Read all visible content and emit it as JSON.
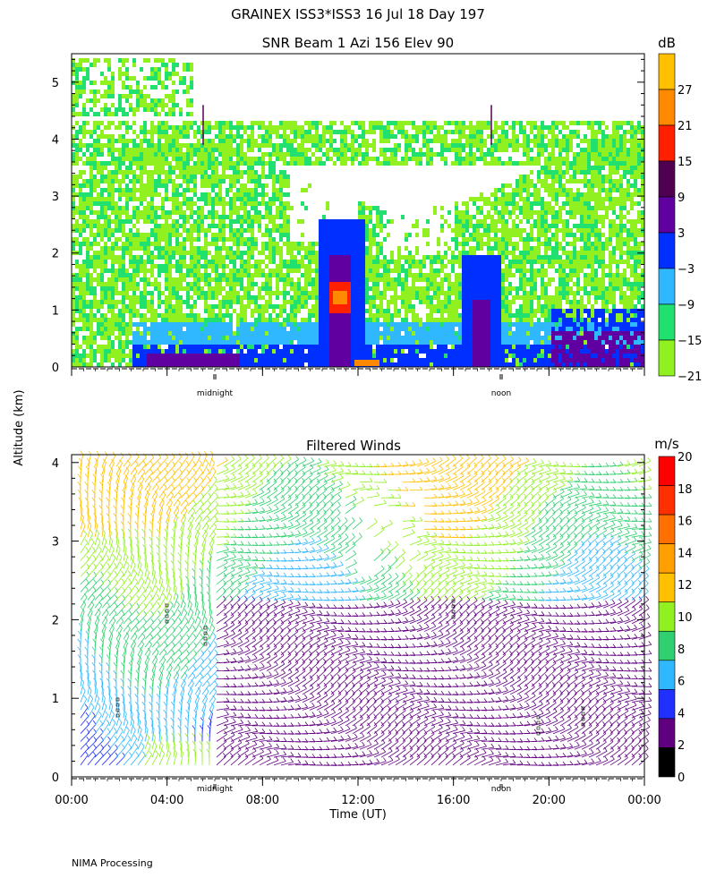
{
  "header": {
    "title": "GRAINEX ISS3*ISS3  16 Jul 18 Day 197"
  },
  "footer": {
    "processing": "NIMA Processing"
  },
  "chart_data": [
    {
      "type": "heatmap",
      "title": "SNR Beam 1 Azi 156 Elev 90",
      "ylabel": "Altitude (km)",
      "xlabel": "",
      "ylim": [
        0,
        5.5
      ],
      "y_ticks": [
        "0",
        "1",
        "2",
        "3",
        "4",
        "5"
      ],
      "x_markers": [
        "midnight",
        "noon"
      ],
      "colorbar": {
        "unit": "dB",
        "tick_labels": [
          "27",
          "21",
          "15",
          "9",
          "3",
          "−3",
          "−9",
          "−15",
          "−21"
        ],
        "colors": [
          "#ffc000",
          "#ff8a00",
          "#ff2000",
          "#500050",
          "#6000a0",
          "#0030ff",
          "#30b8ff",
          "#20e070",
          "#90f020"
        ]
      },
      "features": [
        {
          "name": "background band",
          "altitude_km": [
            0.2,
            3.5
          ],
          "snr_db": -15
        },
        {
          "name": "upper layer",
          "altitude_km": [
            3.8,
            4.3
          ],
          "snr_db": -18
        },
        {
          "name": "boundary layer",
          "altitude_km": [
            0.1,
            0.8
          ],
          "snr_db": -3
        },
        {
          "name": "convective plume ~11:00",
          "altitude_km": [
            0.1,
            2.6
          ],
          "snr_db": 9
        },
        {
          "name": "afternoon plume ~17:00",
          "altitude_km": [
            0.1,
            2.0
          ],
          "snr_db": 3
        }
      ]
    },
    {
      "type": "scatter",
      "title": "Filtered Winds",
      "xlabel": "Time (UT)",
      "ylabel": "Altitude (km)",
      "ylim": [
        0,
        4
      ],
      "x_ticks": [
        "00:00",
        "04:00",
        "08:00",
        "12:00",
        "16:00",
        "20:00",
        "00:00"
      ],
      "y_ticks": [
        "0",
        "1",
        "2",
        "3",
        "4"
      ],
      "x_markers": [
        "midnight",
        "noon"
      ],
      "colorbar": {
        "unit": "m/s",
        "tick_labels": [
          "20",
          "18",
          "16",
          "14",
          "12",
          "10",
          "8",
          "6",
          "4",
          "2",
          "0"
        ],
        "colors": [
          "#ff0000",
          "#ff3000",
          "#ff7000",
          "#ffa000",
          "#ffc000",
          "#90f020",
          "#30d070",
          "#30b8ff",
          "#2030ff",
          "#600080",
          "#000000"
        ]
      }
    }
  ]
}
